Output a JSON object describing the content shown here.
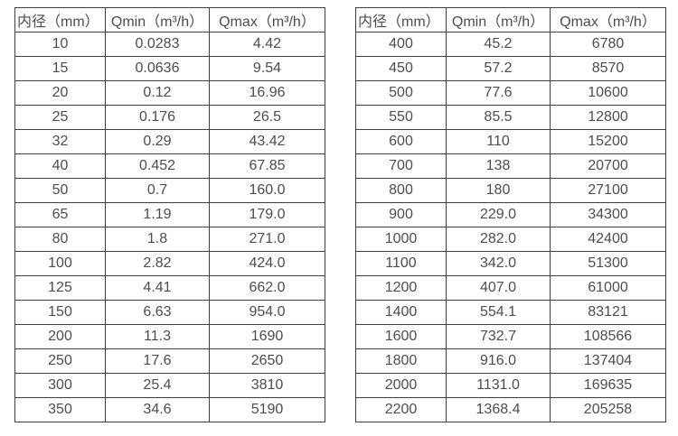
{
  "colors": {
    "background": "#ffffff",
    "border": "#3f3f3f",
    "text": "#4d4d4d"
  },
  "left_table": {
    "headers": [
      "内径（mm）",
      "Qmin（m³/h）",
      "Qmax（m³/h）"
    ],
    "rows": [
      [
        "10",
        "0.0283",
        "4.42"
      ],
      [
        "15",
        "0.0636",
        "9.54"
      ],
      [
        "20",
        "0.12",
        "16.96"
      ],
      [
        "25",
        "0.176",
        "26.5"
      ],
      [
        "32",
        "0.29",
        "43.42"
      ],
      [
        "40",
        "0.452",
        "67.85"
      ],
      [
        "50",
        "0.7",
        "160.0"
      ],
      [
        "65",
        "1.19",
        "179.0"
      ],
      [
        "80",
        "1.8",
        "271.0"
      ],
      [
        "100",
        "2.82",
        "424.0"
      ],
      [
        "125",
        "4.41",
        "662.0"
      ],
      [
        "150",
        "6.63",
        "954.0"
      ],
      [
        "200",
        "11.3",
        "1690"
      ],
      [
        "250",
        "17.6",
        "2650"
      ],
      [
        "300",
        "25.4",
        "3810"
      ],
      [
        "350",
        "34.6",
        "5190"
      ]
    ]
  },
  "right_table": {
    "headers": [
      "内径（mm）",
      "Qmin（m³/h）",
      "Qmax（m³/h）"
    ],
    "rows": [
      [
        "400",
        "45.2",
        "6780"
      ],
      [
        "450",
        "57.2",
        "8570"
      ],
      [
        "500",
        "77.6",
        "10600"
      ],
      [
        "550",
        "85.5",
        "12800"
      ],
      [
        "600",
        "110",
        "15200"
      ],
      [
        "700",
        "138",
        "20700"
      ],
      [
        "800",
        "180",
        "27100"
      ],
      [
        "900",
        "229.0",
        "34300"
      ],
      [
        "1000",
        "282.0",
        "42400"
      ],
      [
        "1100",
        "342.0",
        "51300"
      ],
      [
        "1200",
        "407.0",
        "61000"
      ],
      [
        "1400",
        "554.1",
        "83121"
      ],
      [
        "1600",
        "732.7",
        "108566"
      ],
      [
        "1800",
        "916.0",
        "137404"
      ],
      [
        "2000",
        "1131.0",
        "169635"
      ],
      [
        "2200",
        "1368.4",
        "205258"
      ]
    ]
  }
}
